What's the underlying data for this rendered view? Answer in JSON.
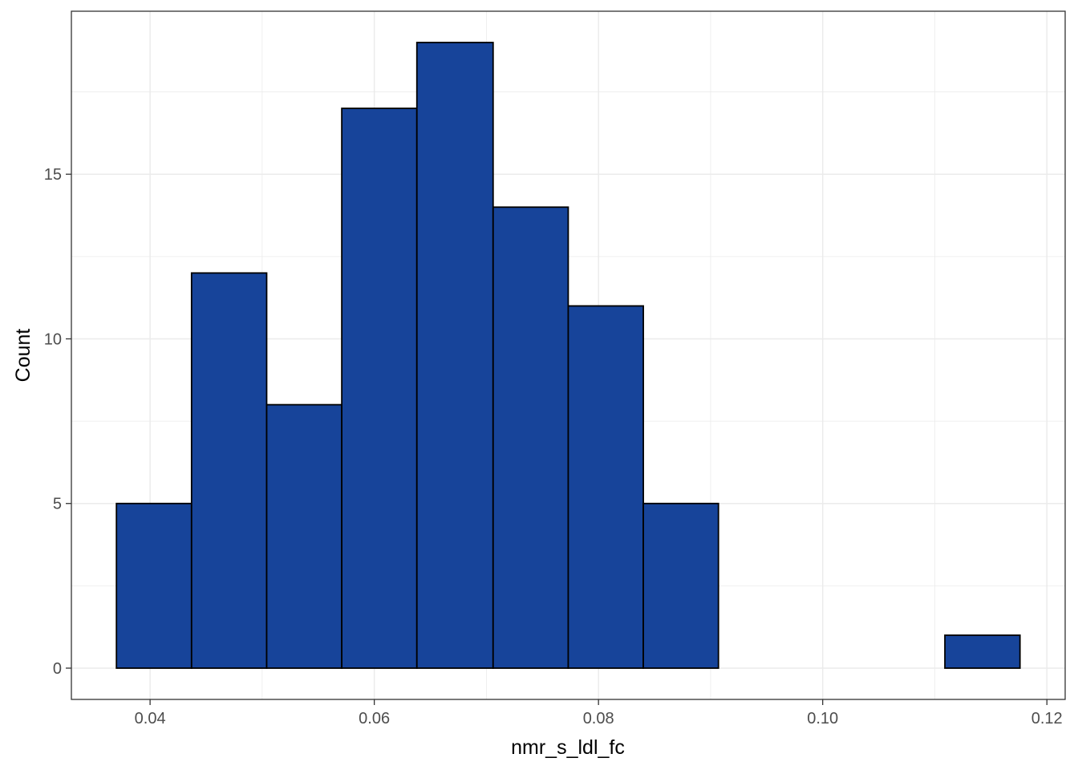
{
  "chart_data": {
    "type": "bar",
    "subtype": "histogram",
    "bins": [
      {
        "start": 0.037,
        "end": 0.0437,
        "count": 5
      },
      {
        "start": 0.0437,
        "end": 0.0504,
        "count": 12
      },
      {
        "start": 0.0504,
        "end": 0.0571,
        "count": 8
      },
      {
        "start": 0.0571,
        "end": 0.0638,
        "count": 17
      },
      {
        "start": 0.0638,
        "end": 0.0706,
        "count": 19
      },
      {
        "start": 0.0706,
        "end": 0.0773,
        "count": 14
      },
      {
        "start": 0.0773,
        "end": 0.084,
        "count": 11
      },
      {
        "start": 0.084,
        "end": 0.0907,
        "count": 5
      },
      {
        "start": 0.0907,
        "end": 0.0974,
        "count": 0
      },
      {
        "start": 0.0974,
        "end": 0.1041,
        "count": 0
      },
      {
        "start": 0.1041,
        "end": 0.1109,
        "count": 0
      },
      {
        "start": 0.1109,
        "end": 0.1176,
        "count": 1
      }
    ],
    "xlabel": "nmr_s_ldl_fc",
    "ylabel": "Count",
    "xlim": [
      0.03298,
      0.12163
    ],
    "ylim": [
      -0.95,
      19.95
    ],
    "x_ticks": [
      0.04,
      0.06,
      0.08,
      0.1,
      0.12
    ],
    "x_tick_labels": [
      "0.04",
      "0.06",
      "0.08",
      "0.10",
      "0.12"
    ],
    "y_ticks": [
      0,
      5,
      10,
      15
    ],
    "y_tick_labels": [
      "0",
      "5",
      "10",
      "15"
    ],
    "grid": true,
    "bar_color": "#17449A",
    "bar_edge_color": "#000000"
  }
}
